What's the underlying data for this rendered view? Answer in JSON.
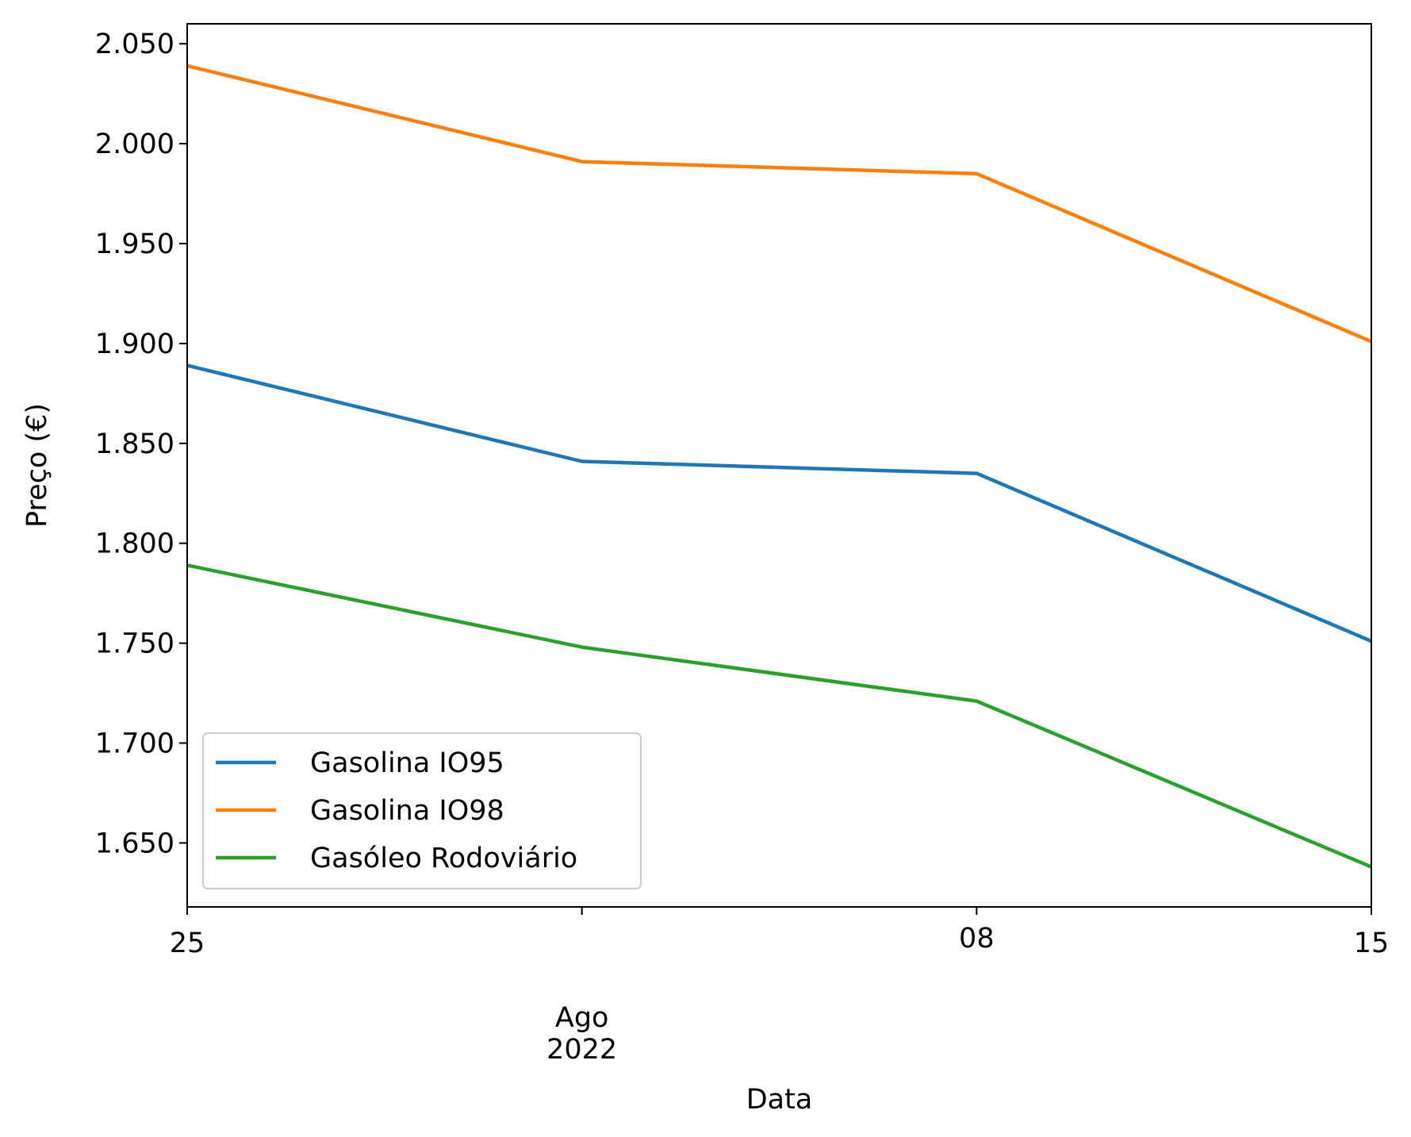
{
  "chart_data": {
    "type": "line",
    "xlabel": "Data",
    "ylabel": "Preço (€)",
    "x": [
      "2022-07-25",
      "2022-08-01",
      "2022-08-08",
      "2022-08-15"
    ],
    "x_ticks": [
      {
        "x": "2022-07-25",
        "label": "25"
      },
      {
        "x": "2022-08-01",
        "label": "Ago\n2022"
      },
      {
        "x": "2022-08-08",
        "label": "08"
      },
      {
        "x": "2022-08-15",
        "label": "15"
      }
    ],
    "ylim": [
      1.618,
      2.06
    ],
    "y_ticks": [
      {
        "value": 1.65,
        "label": "1.650"
      },
      {
        "value": 1.7,
        "label": "1.700"
      },
      {
        "value": 1.75,
        "label": "1.750"
      },
      {
        "value": 1.8,
        "label": "1.800"
      },
      {
        "value": 1.85,
        "label": "1.850"
      },
      {
        "value": 1.9,
        "label": "1.900"
      },
      {
        "value": 1.95,
        "label": "1.950"
      },
      {
        "value": 2.0,
        "label": "2.000"
      },
      {
        "value": 2.05,
        "label": "2.050"
      }
    ],
    "series": [
      {
        "name": "Gasolina IO95",
        "color": "#1f77b4",
        "values": [
          1.889,
          1.841,
          1.835,
          1.751
        ]
      },
      {
        "name": "Gasolina IO98",
        "color": "#ff7f0e",
        "values": [
          2.039,
          1.991,
          1.985,
          1.901
        ]
      },
      {
        "name": "Gasóleo Rodoviário",
        "color": "#2ca02c",
        "values": [
          1.789,
          1.748,
          1.721,
          1.638
        ]
      }
    ],
    "grid": false,
    "legend_position": "lower-left"
  }
}
